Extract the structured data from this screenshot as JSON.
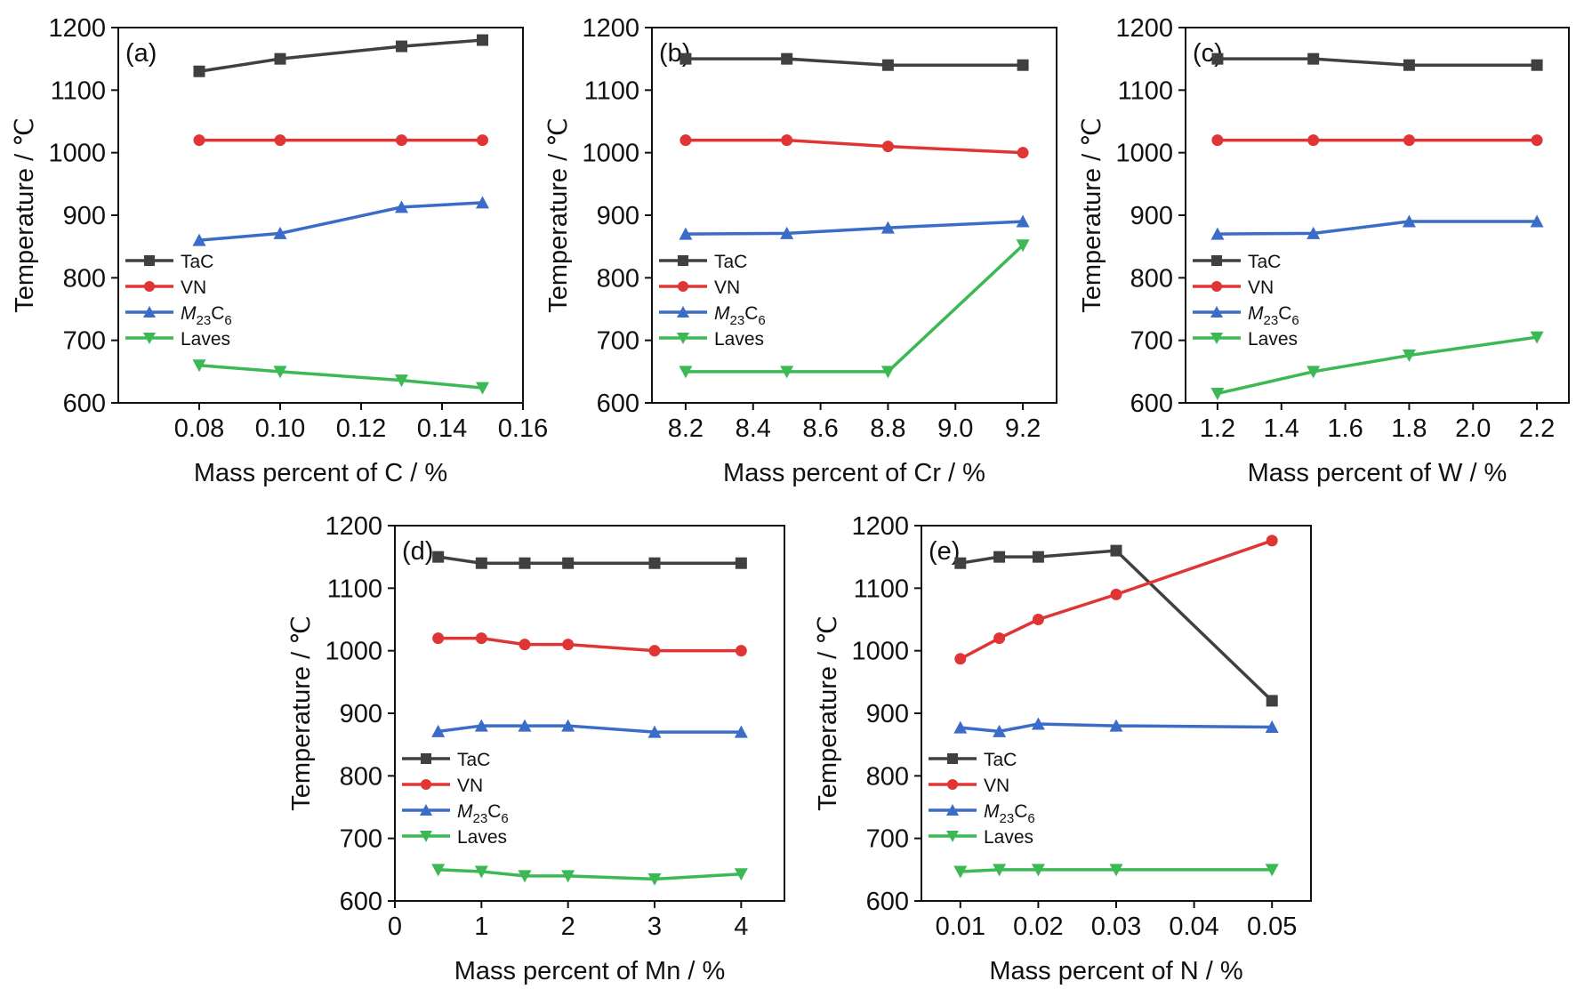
{
  "colors": {
    "TaC": "#404040",
    "VN": "#e03535",
    "M23C6": "#3a6cc8",
    "Laves": "#3cb854"
  },
  "legend": [
    {
      "key": "TaC",
      "label": "TaC",
      "marker": "square"
    },
    {
      "key": "VN",
      "label": "VN",
      "marker": "circle"
    },
    {
      "key": "M23C6",
      "label": "M23C6",
      "label_main": "M",
      "label_sub1": "23",
      "label_mid": "C",
      "label_sub2": "6",
      "marker": "triangle-up"
    },
    {
      "key": "Laves",
      "label": "Laves",
      "marker": "triangle-down"
    }
  ],
  "chart_data": [
    {
      "type": "line",
      "panel": "(a)",
      "xlabel": "Mass percent of C / %",
      "ylabel": "Temperature / ℃",
      "xlim": [
        0.06,
        0.16
      ],
      "ylim": [
        600,
        1200
      ],
      "xticks": [
        0.08,
        0.1,
        0.12,
        0.14,
        0.16
      ],
      "xtick_labels": [
        "0.08",
        "0.10",
        "0.12",
        "0.14",
        "0.16"
      ],
      "yticks": [
        600,
        700,
        800,
        900,
        1000,
        1100,
        1200
      ],
      "legend_position": "left",
      "x": [
        0.08,
        0.1,
        0.13,
        0.15
      ],
      "series": [
        {
          "name": "TaC",
          "values": [
            1130,
            1150,
            1170,
            1180
          ]
        },
        {
          "name": "VN",
          "values": [
            1020,
            1020,
            1020,
            1020
          ]
        },
        {
          "name": "M23C6",
          "values": [
            860,
            871,
            913,
            920
          ]
        },
        {
          "name": "Laves",
          "values": [
            660,
            650,
            636,
            624
          ]
        }
      ]
    },
    {
      "type": "line",
      "panel": "(b)",
      "xlabel": "Mass percent of Cr / %",
      "ylabel": "Temperature / ℃",
      "xlim": [
        8.1,
        9.3
      ],
      "ylim": [
        600,
        1200
      ],
      "xticks": [
        8.2,
        8.4,
        8.6,
        8.8,
        9.0,
        9.2
      ],
      "xtick_labels": [
        "8.2",
        "8.4",
        "8.6",
        "8.8",
        "9.0",
        "9.2"
      ],
      "yticks": [
        600,
        700,
        800,
        900,
        1000,
        1100,
        1200
      ],
      "legend_position": "left",
      "x": [
        8.2,
        8.5,
        8.8,
        9.2
      ],
      "series": [
        {
          "name": "TaC",
          "values": [
            1150,
            1150,
            1140,
            1140
          ]
        },
        {
          "name": "VN",
          "values": [
            1020,
            1020,
            1010,
            1000
          ]
        },
        {
          "name": "M23C6",
          "values": [
            870,
            871,
            880,
            890
          ]
        },
        {
          "name": "Laves",
          "values": [
            650,
            650,
            650,
            852
          ]
        }
      ]
    },
    {
      "type": "line",
      "panel": "(c)",
      "xlabel": "Mass percent of W / %",
      "ylabel": "Temperature / ℃",
      "xlim": [
        1.1,
        2.3
      ],
      "ylim": [
        600,
        1200
      ],
      "xticks": [
        1.2,
        1.4,
        1.6,
        1.8,
        2.0,
        2.2
      ],
      "xtick_labels": [
        "1.2",
        "1.4",
        "1.6",
        "1.8",
        "2.0",
        "2.2"
      ],
      "yticks": [
        600,
        700,
        800,
        900,
        1000,
        1100,
        1200
      ],
      "legend_position": "left",
      "x": [
        1.2,
        1.5,
        1.8,
        2.2
      ],
      "series": [
        {
          "name": "TaC",
          "values": [
            1150,
            1150,
            1140,
            1140
          ]
        },
        {
          "name": "VN",
          "values": [
            1020,
            1020,
            1020,
            1020
          ]
        },
        {
          "name": "M23C6",
          "values": [
            870,
            871,
            890,
            890
          ]
        },
        {
          "name": "Laves",
          "values": [
            615,
            650,
            676,
            705
          ]
        }
      ]
    },
    {
      "type": "line",
      "panel": "(d)",
      "xlabel": "Mass percent of Mn / %",
      "ylabel": "Temperature / ℃",
      "xlim": [
        0,
        4.5
      ],
      "ylim": [
        600,
        1200
      ],
      "xticks": [
        0,
        1,
        2,
        3,
        4
      ],
      "xtick_labels": [
        "0",
        "1",
        "2",
        "3",
        "4"
      ],
      "yticks": [
        600,
        700,
        800,
        900,
        1000,
        1100,
        1200
      ],
      "legend_position": "left",
      "x": [
        0.5,
        1,
        1.5,
        2,
        3,
        4
      ],
      "series": [
        {
          "name": "TaC",
          "values": [
            1150,
            1140,
            1140,
            1140,
            1140,
            1140
          ]
        },
        {
          "name": "VN",
          "values": [
            1020,
            1020,
            1010,
            1010,
            1000,
            1000
          ]
        },
        {
          "name": "M23C6",
          "values": [
            871,
            880,
            880,
            880,
            870,
            870
          ]
        },
        {
          "name": "Laves",
          "values": [
            650,
            647,
            640,
            640,
            635,
            643
          ]
        }
      ]
    },
    {
      "type": "line",
      "panel": "(e)",
      "xlabel": "Mass percent of N / %",
      "ylabel": "Temperature / ℃",
      "xlim": [
        0.005,
        0.055
      ],
      "ylim": [
        600,
        1200
      ],
      "xticks": [
        0.01,
        0.02,
        0.03,
        0.04,
        0.05
      ],
      "xtick_labels": [
        "0.01",
        "0.02",
        "0.03",
        "0.04",
        "0.05"
      ],
      "yticks": [
        600,
        700,
        800,
        900,
        1000,
        1100,
        1200
      ],
      "legend_position": "left",
      "x": [
        0.01,
        0.015,
        0.02,
        0.03,
        0.05
      ],
      "series": [
        {
          "name": "TaC",
          "values": [
            1140,
            1150,
            1150,
            1160,
            920
          ]
        },
        {
          "name": "VN",
          "values": [
            987,
            1020,
            1050,
            1090,
            1176
          ]
        },
        {
          "name": "M23C6",
          "values": [
            877,
            871,
            883,
            880,
            878
          ]
        },
        {
          "name": "Laves",
          "values": [
            647,
            650,
            650,
            650,
            650
          ]
        }
      ]
    }
  ]
}
